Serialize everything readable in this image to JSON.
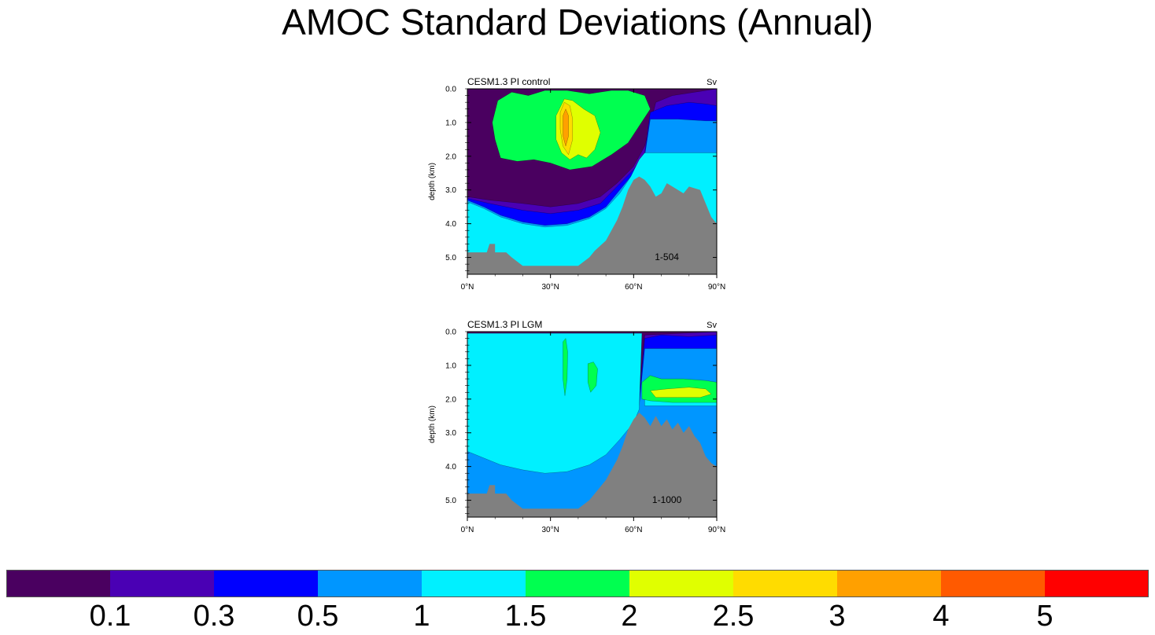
{
  "title": "AMOC Standard Deviations (Annual)",
  "colorbar": {
    "colors": [
      "#4a0060",
      "#4a00b4",
      "#0000ff",
      "#0096ff",
      "#00f0ff",
      "#00ff50",
      "#e0ff00",
      "#ffdc00",
      "#ffa000",
      "#ff5a00",
      "#ff0000"
    ],
    "labels": [
      "0.1",
      "0.3",
      "0.5",
      "1",
      "1.5",
      "2",
      "2.5",
      "3",
      "4",
      "5"
    ]
  },
  "chart_data": [
    {
      "type": "heatmap",
      "title": "CESM1.3 PI control",
      "units": "Sv",
      "ylabel": "depth (km)",
      "x_ticks": [
        "0°N",
        "30°N",
        "60°N",
        "90°N"
      ],
      "y_ticks": [
        "0.0",
        "1.0",
        "2.0",
        "3.0",
        "4.0",
        "5.0"
      ],
      "xlim": [
        0,
        90
      ],
      "ylim": [
        5.5,
        0
      ],
      "annotation": "1-504",
      "land_color": "#808080",
      "regions": [
        {
          "level": 0.1,
          "pts": [
            [
              0,
              3.2
            ],
            [
              8,
              3.3
            ],
            [
              20,
              3.4
            ],
            [
              30,
              3.5
            ],
            [
              40,
              3.4
            ],
            [
              48,
              3.2
            ],
            [
              54,
              2.8
            ],
            [
              60,
              2.3
            ],
            [
              64,
              1.7
            ],
            [
              68,
              0.4
            ],
            [
              74,
              0.2
            ],
            [
              82,
              0.1
            ],
            [
              90,
              0
            ],
            [
              90,
              5.5
            ],
            [
              0,
              5.5
            ]
          ]
        },
        {
          "level": 0.3,
          "pts": [
            [
              0,
              3.25
            ],
            [
              8,
              3.4
            ],
            [
              20,
              3.6
            ],
            [
              30,
              3.7
            ],
            [
              40,
              3.6
            ],
            [
              48,
              3.4
            ],
            [
              54,
              2.9
            ],
            [
              60,
              2.4
            ],
            [
              64,
              1.9
            ],
            [
              66,
              0.7
            ],
            [
              72,
              0.5
            ],
            [
              80,
              0.4
            ],
            [
              86,
              0.45
            ],
            [
              90,
              0.5
            ],
            [
              90,
              5.5
            ],
            [
              0,
              5.5
            ]
          ]
        },
        {
          "level": 0.5,
          "pts": [
            [
              0,
              3.3
            ],
            [
              6,
              3.5
            ],
            [
              12,
              3.75
            ],
            [
              20,
              3.95
            ],
            [
              28,
              4.05
            ],
            [
              36,
              4.0
            ],
            [
              44,
              3.8
            ],
            [
              50,
              3.5
            ],
            [
              55,
              3.0
            ],
            [
              60,
              2.5
            ],
            [
              64,
              2.0
            ],
            [
              66,
              0.9
            ],
            [
              76,
              0.9
            ],
            [
              86,
              0.95
            ],
            [
              90,
              0.95
            ],
            [
              90,
              5.5
            ],
            [
              0,
              5.5
            ]
          ]
        },
        {
          "level": 1.0,
          "pts": [
            [
              0,
              3.35
            ],
            [
              6,
              3.55
            ],
            [
              12,
              3.8
            ],
            [
              20,
              4.0
            ],
            [
              28,
              4.1
            ],
            [
              36,
              4.05
            ],
            [
              44,
              3.85
            ],
            [
              50,
              3.55
            ],
            [
              55,
              3.1
            ],
            [
              59,
              2.6
            ],
            [
              62,
              2.1
            ],
            [
              64,
              1.9
            ],
            [
              90,
              1.9
            ],
            [
              90,
              5.5
            ],
            [
              0,
              5.5
            ]
          ],
          "cutout": true
        },
        {
          "level": 1.5,
          "pts": [
            [
              11,
              0.35
            ],
            [
              16,
              0.1
            ],
            [
              22,
              0.2
            ],
            [
              28,
              0.05
            ],
            [
              36,
              0.05
            ],
            [
              44,
              0.15
            ],
            [
              52,
              0.05
            ],
            [
              58,
              0.05
            ],
            [
              64,
              0.2
            ],
            [
              66,
              0.6
            ],
            [
              62,
              1.1
            ],
            [
              58,
              1.6
            ],
            [
              52,
              1.95
            ],
            [
              45,
              2.3
            ],
            [
              37,
              2.4
            ],
            [
              30,
              2.2
            ],
            [
              24,
              2.1
            ],
            [
              18,
              2.15
            ],
            [
              12,
              2.05
            ],
            [
              10,
              1.5
            ],
            [
              9,
              1.0
            ]
          ]
        },
        {
          "level": 2.0,
          "pts": [
            [
              32,
              0.8
            ],
            [
              35,
              0.3
            ],
            [
              38,
              0.35
            ],
            [
              42,
              0.6
            ],
            [
              46,
              0.8
            ],
            [
              48,
              1.3
            ],
            [
              46,
              1.8
            ],
            [
              43,
              2.05
            ],
            [
              40,
              1.95
            ],
            [
              37,
              2.1
            ],
            [
              34,
              1.9
            ],
            [
              32,
              1.5
            ]
          ]
        },
        {
          "level": 2.5,
          "pts": [
            [
              33.5,
              0.7
            ],
            [
              35,
              0.4
            ],
            [
              37,
              0.5
            ],
            [
              38,
              0.9
            ],
            [
              38,
              1.5
            ],
            [
              36.5,
              1.95
            ],
            [
              34.5,
              1.7
            ],
            [
              33.5,
              1.2
            ]
          ]
        },
        {
          "level": 3.0,
          "pts": [
            [
              34.5,
              0.8
            ],
            [
              35.5,
              0.6
            ],
            [
              36.5,
              0.8
            ],
            [
              36.5,
              1.4
            ],
            [
              35.5,
              1.7
            ],
            [
              34.5,
              1.4
            ]
          ]
        }
      ],
      "land": [
        [
          0,
          4.85
        ],
        [
          7,
          4.85
        ],
        [
          8,
          4.6
        ],
        [
          10,
          4.6
        ],
        [
          10,
          4.85
        ],
        [
          14,
          4.85
        ],
        [
          16,
          5.0
        ],
        [
          20,
          5.25
        ],
        [
          40,
          5.25
        ],
        [
          44,
          5.0
        ],
        [
          46,
          4.8
        ],
        [
          50,
          4.5
        ],
        [
          54,
          3.9
        ],
        [
          56,
          3.5
        ],
        [
          58,
          3.0
        ],
        [
          60,
          2.7
        ],
        [
          62,
          2.6
        ],
        [
          64,
          2.7
        ],
        [
          66,
          2.9
        ],
        [
          68,
          3.2
        ],
        [
          70,
          3.1
        ],
        [
          72,
          2.8
        ],
        [
          74,
          2.9
        ],
        [
          78,
          3.1
        ],
        [
          80,
          2.9
        ],
        [
          84,
          3.0
        ],
        [
          86,
          3.4
        ],
        [
          88,
          3.8
        ],
        [
          90,
          4.0
        ],
        [
          90,
          5.5
        ],
        [
          0,
          5.5
        ]
      ]
    },
    {
      "type": "heatmap",
      "title": "CESM1.3 PI LGM",
      "units": "Sv",
      "ylabel": "depth (km)",
      "x_ticks": [
        "0°N",
        "30°N",
        "60°N",
        "90°N"
      ],
      "y_ticks": [
        "0.0",
        "1.0",
        "2.0",
        "3.0",
        "4.0",
        "5.0"
      ],
      "xlim": [
        0,
        90
      ],
      "ylim": [
        5.5,
        0
      ],
      "annotation": "1-1000",
      "land_color": "#808080",
      "regions": [
        {
          "level": 0.1,
          "pts": [
            [
              0,
              3.4
            ],
            [
              10,
              3.6
            ],
            [
              22,
              3.8
            ],
            [
              32,
              3.85
            ],
            [
              42,
              3.7
            ],
            [
              50,
              3.3
            ],
            [
              55,
              2.8
            ],
            [
              60,
              2.3
            ],
            [
              62,
              1.9
            ],
            [
              64,
              0.1
            ],
            [
              90,
              0
            ],
            [
              90,
              5.5
            ],
            [
              0,
              5.5
            ]
          ]
        },
        {
          "level": 0.3,
          "pts": [
            [
              0,
              3.45
            ],
            [
              10,
              3.7
            ],
            [
              22,
              3.95
            ],
            [
              32,
              4.0
            ],
            [
              42,
              3.8
            ],
            [
              50,
              3.4
            ],
            [
              55,
              2.9
            ],
            [
              60,
              2.4
            ],
            [
              62,
              2.0
            ],
            [
              64,
              0.2
            ],
            [
              70,
              0.1
            ],
            [
              80,
              0.15
            ],
            [
              90,
              0.1
            ],
            [
              90,
              5.5
            ],
            [
              0,
              5.5
            ]
          ]
        },
        {
          "level": 0.5,
          "pts": [
            [
              0,
              3.5
            ],
            [
              6,
              3.7
            ],
            [
              12,
              3.9
            ],
            [
              20,
              4.05
            ],
            [
              28,
              4.15
            ],
            [
              36,
              4.1
            ],
            [
              44,
              3.9
            ],
            [
              50,
              3.6
            ],
            [
              55,
              3.1
            ],
            [
              60,
              2.6
            ],
            [
              62,
              2.2
            ],
            [
              64,
              0.5
            ],
            [
              90,
              0.5
            ],
            [
              90,
              5.5
            ],
            [
              0,
              5.5
            ]
          ]
        },
        {
          "level": 1.0,
          "pts": [
            [
              0,
              3.55
            ],
            [
              6,
              3.75
            ],
            [
              12,
              3.95
            ],
            [
              20,
              4.1
            ],
            [
              28,
              4.2
            ],
            [
              36,
              4.15
            ],
            [
              44,
              3.95
            ],
            [
              50,
              3.65
            ],
            [
              55,
              3.2
            ],
            [
              60,
              2.7
            ],
            [
              62,
              2.3
            ],
            [
              63,
              0.05
            ],
            [
              0,
              0.05
            ]
          ]
        },
        {
          "level": 1.0,
          "pts": [
            [
              64,
              1.6
            ],
            [
              90,
              1.6
            ],
            [
              90,
              2.2
            ],
            [
              64,
              2.2
            ]
          ]
        },
        {
          "level": 1.5,
          "pts": [
            [
              34.5,
              0.3
            ],
            [
              35.5,
              0.2
            ],
            [
              36.2,
              0.6
            ],
            [
              36,
              1.4
            ],
            [
              35.2,
              1.9
            ],
            [
              34.5,
              1.4
            ]
          ]
        },
        {
          "level": 1.5,
          "pts": [
            [
              43.5,
              0.95
            ],
            [
              45.5,
              0.9
            ],
            [
              47,
              1.1
            ],
            [
              46.5,
              1.6
            ],
            [
              44.5,
              1.8
            ],
            [
              43.5,
              1.5
            ]
          ]
        },
        {
          "level": 1.5,
          "pts": [
            [
              63,
              1.5
            ],
            [
              66,
              1.3
            ],
            [
              70,
              1.4
            ],
            [
              78,
              1.4
            ],
            [
              86,
              1.45
            ],
            [
              90,
              1.5
            ],
            [
              90,
              2.1
            ],
            [
              82,
              2.1
            ],
            [
              74,
              2.1
            ],
            [
              66,
              2.05
            ],
            [
              63,
              2.0
            ]
          ]
        },
        {
          "level": 2.0,
          "pts": [
            [
              66,
              1.75
            ],
            [
              72,
              1.7
            ],
            [
              80,
              1.65
            ],
            [
              86,
              1.7
            ],
            [
              88,
              1.85
            ],
            [
              84,
              1.95
            ],
            [
              76,
              1.95
            ],
            [
              68,
              1.95
            ]
          ]
        }
      ],
      "land": [
        [
          0,
          4.8
        ],
        [
          7,
          4.8
        ],
        [
          8,
          4.55
        ],
        [
          10,
          4.55
        ],
        [
          10,
          4.8
        ],
        [
          14,
          4.8
        ],
        [
          16,
          5.0
        ],
        [
          20,
          5.25
        ],
        [
          40,
          5.25
        ],
        [
          44,
          5.0
        ],
        [
          46,
          4.8
        ],
        [
          50,
          4.4
        ],
        [
          54,
          3.8
        ],
        [
          56,
          3.4
        ],
        [
          58,
          2.9
        ],
        [
          60,
          2.6
        ],
        [
          62,
          2.4
        ],
        [
          64,
          2.55
        ],
        [
          66,
          2.8
        ],
        [
          68,
          2.5
        ],
        [
          70,
          2.8
        ],
        [
          72,
          2.6
        ],
        [
          74,
          2.9
        ],
        [
          76,
          2.7
        ],
        [
          78,
          3.0
        ],
        [
          80,
          2.8
        ],
        [
          82,
          3.1
        ],
        [
          84,
          3.3
        ],
        [
          86,
          3.7
        ],
        [
          88,
          3.9
        ],
        [
          90,
          4.0
        ],
        [
          90,
          5.5
        ],
        [
          0,
          5.5
        ]
      ]
    }
  ]
}
